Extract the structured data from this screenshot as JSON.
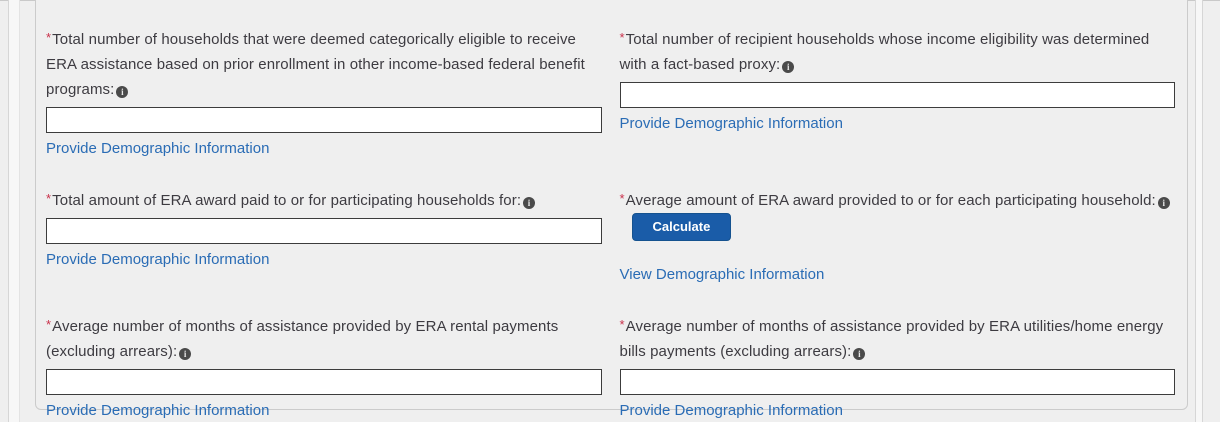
{
  "icons": {
    "info": "i"
  },
  "colors": {
    "page_background": "#efefef",
    "panel_border": "#cbcbcb",
    "label_text": "#3d3b41",
    "required_asterisk": "#c9304a",
    "link": "#2a6cb5",
    "button_background": "#1a5ca8",
    "input_border": "#3c3c3c"
  },
  "fields": [
    {
      "required": "*",
      "label": "Total number of households that were deemed categorically eligible to receive ERA assistance based on prior enrollment in other income-based federal benefit programs:",
      "input_value": "",
      "link": "Provide Demographic Information"
    },
    {
      "required": "*",
      "label": "Total number of recipient households whose income eligibility was determined with a fact-based proxy:",
      "input_value": "",
      "link": "Provide Demographic Information"
    },
    {
      "required": "*",
      "label": "Total amount of ERA award paid to or for participating households for:",
      "input_value": "",
      "link": "Provide Demographic Information"
    },
    {
      "required": "*",
      "label": "Average amount of ERA award provided to or for each participating household:",
      "button_label": "Calculate",
      "link": "View Demographic Information"
    },
    {
      "required": "*",
      "label": "Average number of months of assistance provided by ERA rental payments (excluding arrears):",
      "input_value": "",
      "link": "Provide Demographic Information"
    },
    {
      "required": "*",
      "label": "Average number of months of assistance provided by ERA utilities/home energy bills payments (excluding arrears):",
      "input_value": "",
      "link": "Provide Demographic Information"
    }
  ]
}
